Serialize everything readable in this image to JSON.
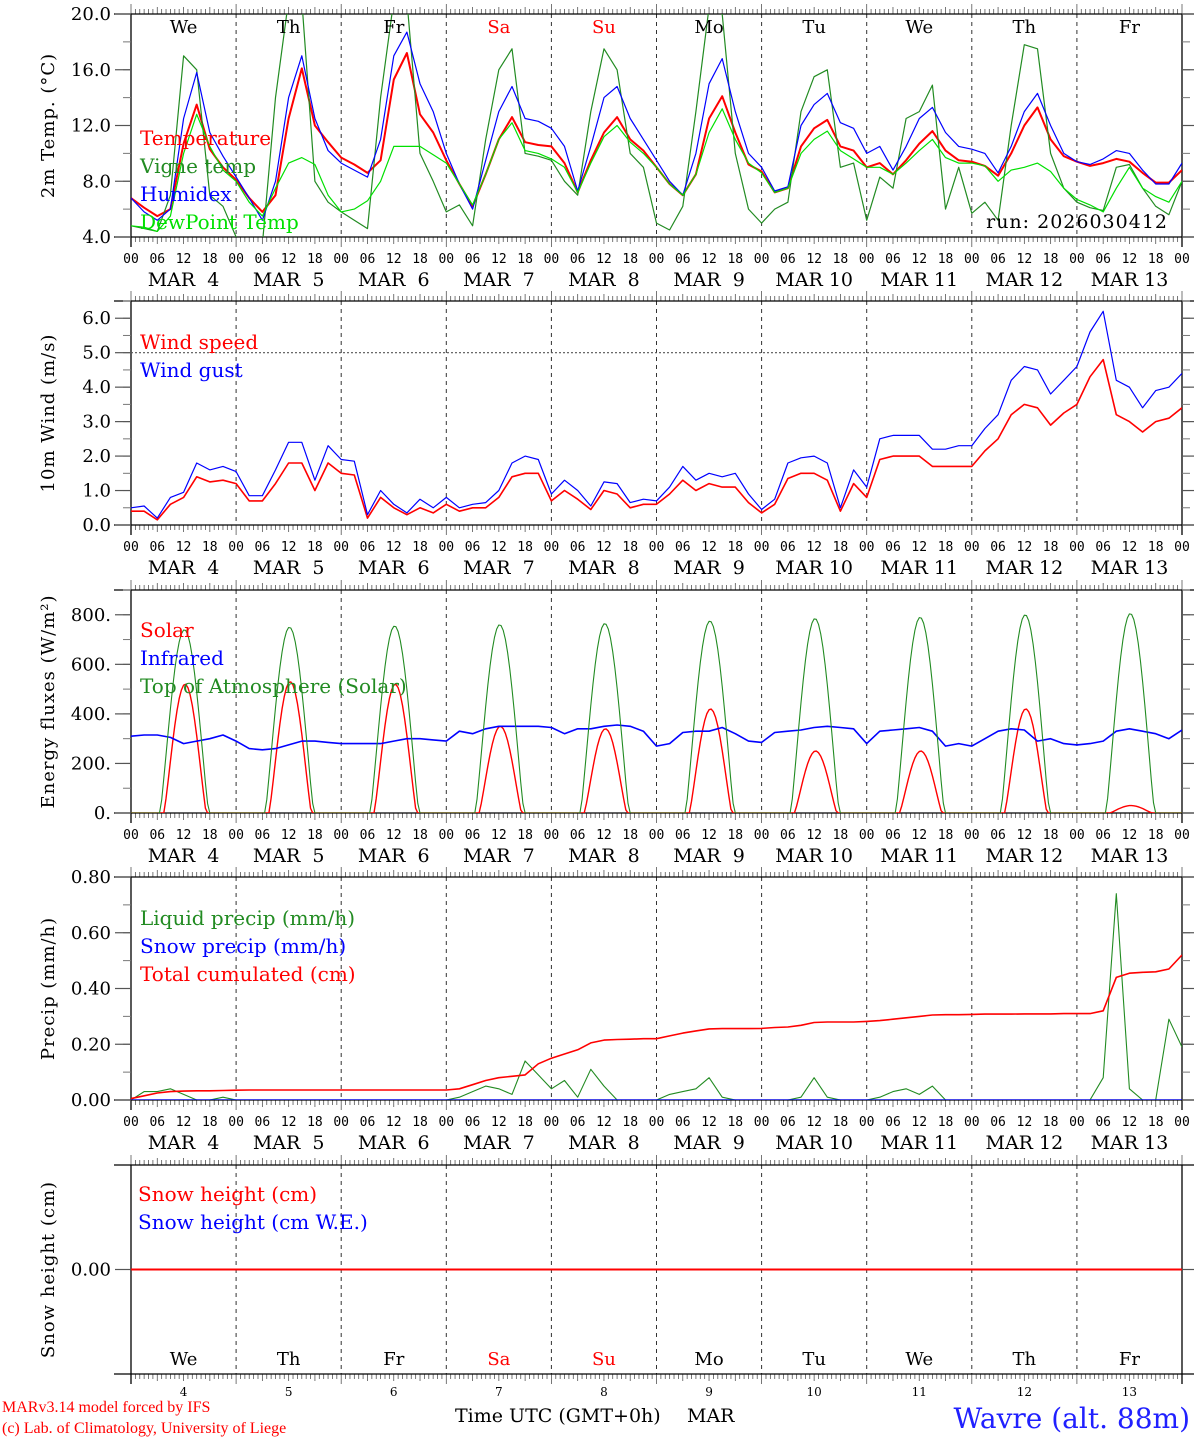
{
  "days": [
    "We",
    "Th",
    "Fr",
    "Sa",
    "Su",
    "Mo",
    "Tu",
    "We",
    "Th",
    "Fr"
  ],
  "weekend": [
    false,
    false,
    false,
    true,
    true,
    false,
    false,
    false,
    false,
    false
  ],
  "dates": [
    "MAR  4",
    "MAR  5",
    "MAR  6",
    "MAR  7",
    "MAR  8",
    "MAR  9",
    "MAR 10",
    "MAR 11",
    "MAR 12",
    "MAR 13"
  ],
  "date_numbers": [
    "4",
    "5",
    "6",
    "7",
    "8",
    "9",
    "10",
    "11",
    "12",
    "13"
  ],
  "hour_labels": [
    "00",
    "06",
    "12",
    "18"
  ],
  "colors": {
    "weekend": "#ff0000",
    "weekday": "#000000"
  },
  "xlabel": "Time UTC (GMT+0h)",
  "xlabel_month": "MAR",
  "footer": {
    "credit1": "MARv3.14 model forced by IFS",
    "credit2": "(c) Lab. of Climatology, University of Liege",
    "station": "Wavre (alt. 88m)"
  },
  "chart_data": [
    {
      "type": "line",
      "ylabel": "2m Temp. (°C)",
      "ylim": [
        4,
        20
      ],
      "yticks": [
        "4.0",
        "8.0",
        "12.0",
        "16.0",
        "20.0"
      ],
      "ytick_values": [
        4,
        8,
        12,
        16,
        20
      ],
      "yminor_step": 2,
      "x_step_hours": 3,
      "annotation": "run: 2026030412",
      "series": [
        {
          "name": "Temperature",
          "color": "#ff0000",
          "width": 2,
          "values": [
            6.8,
            6.1,
            5.5,
            6.0,
            10.7,
            13.5,
            10.3,
            9.0,
            8.1,
            6.8,
            5.8,
            7.0,
            12.5,
            16.1,
            12.0,
            10.8,
            9.7,
            9.2,
            8.6,
            9.5,
            15.3,
            17.2,
            12.8,
            11.5,
            9.5,
            7.8,
            6.2,
            8.5,
            11.0,
            12.6,
            10.8,
            10.6,
            10.5,
            9.3,
            7.2,
            9.5,
            11.5,
            12.6,
            11.0,
            10.2,
            9.0,
            7.8,
            7.0,
            8.5,
            12.5,
            14.1,
            11.5,
            9.2,
            8.7,
            7.2,
            7.5,
            10.5,
            11.8,
            12.4,
            10.5,
            10.2,
            9.0,
            9.3,
            8.5,
            9.5,
            10.7,
            11.6,
            10.2,
            9.5,
            9.4,
            9.1,
            8.4,
            10.0,
            12.0,
            13.3,
            11.0,
            9.8,
            9.4,
            9.1,
            9.3,
            9.6,
            9.4,
            8.6,
            7.9,
            7.9,
            8.8
          ]
        },
        {
          "name": "Vigne temp",
          "color": "#228b22",
          "width": 1.2,
          "values": [
            4.8,
            4.6,
            4.4,
            7.0,
            17.0,
            16.0,
            7.0,
            6.2,
            4.0,
            2.5,
            3.5,
            14.0,
            21.0,
            21.0,
            8.0,
            6.5,
            5.8,
            5.2,
            4.6,
            14.0,
            21.0,
            21.0,
            10.0,
            8.0,
            5.8,
            6.3,
            4.8,
            11.0,
            16.0,
            17.5,
            10.0,
            9.8,
            9.5,
            8.0,
            7.0,
            13.0,
            17.5,
            16.0,
            10.0,
            9.0,
            5.0,
            4.5,
            6.2,
            13.0,
            20.5,
            20.0,
            10.0,
            6.0,
            5.0,
            6.0,
            6.5,
            13.0,
            15.5,
            16.0,
            9.0,
            9.3,
            5.2,
            8.3,
            7.5,
            12.5,
            13.0,
            14.9,
            6.0,
            9.0,
            5.7,
            6.5,
            5.2,
            12.0,
            17.8,
            17.5,
            10.0,
            7.5,
            6.5,
            6.1,
            5.9,
            9.0,
            9.2,
            7.5,
            6.2,
            5.6,
            8.0
          ]
        },
        {
          "name": "Humidex",
          "color": "#0000ff",
          "width": 1.2,
          "values": [
            6.8,
            5.8,
            5.2,
            6.0,
            12.5,
            15.8,
            11.5,
            9.8,
            8.3,
            6.8,
            5.2,
            8.0,
            14.0,
            17.0,
            12.5,
            10.2,
            9.3,
            8.8,
            8.3,
            11.0,
            17.0,
            18.7,
            15.0,
            13.0,
            10.0,
            7.8,
            6.0,
            9.5,
            13.0,
            14.8,
            12.5,
            12.3,
            11.8,
            10.5,
            7.3,
            10.5,
            14.0,
            14.8,
            12.5,
            11.0,
            9.5,
            8.0,
            7.0,
            10.0,
            15.0,
            16.8,
            13.0,
            10.0,
            9.0,
            7.3,
            7.6,
            12.0,
            13.5,
            14.3,
            12.2,
            11.8,
            10.0,
            10.5,
            8.8,
            10.5,
            12.5,
            13.3,
            11.5,
            10.5,
            10.3,
            10.0,
            8.6,
            10.5,
            13.0,
            14.3,
            12.0,
            10.0,
            9.4,
            9.2,
            9.6,
            10.2,
            10.0,
            8.8,
            7.8,
            7.8,
            9.3
          ]
        },
        {
          "name": "DewPoint Temp",
          "color": "#00e000",
          "width": 1.2,
          "values": [
            4.8,
            4.7,
            4.4,
            5.5,
            10.0,
            12.8,
            10.5,
            8.8,
            8.0,
            6.5,
            5.5,
            7.5,
            9.3,
            9.7,
            9.2,
            7.0,
            5.8,
            6.0,
            6.6,
            8.0,
            10.5,
            10.5,
            10.5,
            9.9,
            9.3,
            7.8,
            6.3,
            8.5,
            11.0,
            12.2,
            10.2,
            10.0,
            9.6,
            9.0,
            7.2,
            9.3,
            11.2,
            12.0,
            10.8,
            10.0,
            9.0,
            7.8,
            7.0,
            8.5,
            11.5,
            13.2,
            11.0,
            9.3,
            8.6,
            7.2,
            7.5,
            10.0,
            11.0,
            11.6,
            10.2,
            9.6,
            9.0,
            9.0,
            8.5,
            9.3,
            10.2,
            11.0,
            9.7,
            9.3,
            9.3,
            9.1,
            8.0,
            8.8,
            9.0,
            9.3,
            8.7,
            7.5,
            6.7,
            6.3,
            5.8,
            7.5,
            9.0,
            7.5,
            6.9,
            6.5,
            8.0
          ]
        }
      ]
    },
    {
      "type": "line",
      "ylabel": "10m Wind (m/s)",
      "ylim": [
        0,
        6.5
      ],
      "yticks": [
        "0.0",
        "1.0",
        "2.0",
        "3.0",
        "4.0",
        "5.0",
        "6.0"
      ],
      "ytick_values": [
        0,
        1,
        2,
        3,
        4,
        5,
        6
      ],
      "yminor_step": 0.5,
      "x_step_hours": 3,
      "reference_line": 5.0,
      "series": [
        {
          "name": "Wind speed",
          "color": "#ff0000",
          "width": 1.6,
          "values": [
            0.4,
            0.4,
            0.15,
            0.6,
            0.8,
            1.4,
            1.25,
            1.3,
            1.2,
            0.7,
            0.7,
            1.2,
            1.8,
            1.8,
            1.0,
            1.8,
            1.5,
            1.45,
            0.2,
            0.8,
            0.5,
            0.3,
            0.5,
            0.35,
            0.6,
            0.4,
            0.5,
            0.5,
            0.8,
            1.4,
            1.5,
            1.5,
            0.7,
            1.0,
            0.75,
            0.45,
            1.0,
            0.9,
            0.5,
            0.6,
            0.6,
            0.9,
            1.3,
            1.0,
            1.2,
            1.1,
            1.1,
            0.65,
            0.35,
            0.6,
            1.35,
            1.5,
            1.5,
            1.3,
            0.4,
            1.2,
            0.8,
            1.9,
            2.0,
            2.0,
            2.0,
            1.7,
            1.7,
            1.7,
            1.7,
            2.15,
            2.5,
            3.2,
            3.5,
            3.4,
            2.9,
            3.25,
            3.5,
            4.3,
            4.8,
            3.2,
            3.0,
            2.7,
            3.0,
            3.1,
            3.4
          ]
        },
        {
          "name": "Wind gust",
          "color": "#0000ff",
          "width": 1.2,
          "values": [
            0.5,
            0.55,
            0.2,
            0.8,
            0.95,
            1.8,
            1.6,
            1.7,
            1.55,
            0.85,
            0.85,
            1.6,
            2.4,
            2.4,
            1.3,
            2.3,
            1.9,
            1.85,
            0.3,
            1.0,
            0.6,
            0.35,
            0.75,
            0.5,
            0.8,
            0.5,
            0.6,
            0.65,
            1.0,
            1.8,
            2.0,
            1.9,
            0.9,
            1.3,
            1.0,
            0.55,
            1.25,
            1.2,
            0.65,
            0.75,
            0.7,
            1.1,
            1.7,
            1.3,
            1.5,
            1.4,
            1.5,
            0.9,
            0.45,
            0.75,
            1.8,
            1.95,
            2.0,
            1.8,
            0.5,
            1.6,
            1.1,
            2.5,
            2.6,
            2.6,
            2.6,
            2.2,
            2.2,
            2.3,
            2.3,
            2.8,
            3.2,
            4.2,
            4.6,
            4.5,
            3.8,
            4.2,
            4.6,
            5.6,
            6.2,
            4.2,
            4.0,
            3.4,
            3.9,
            4.0,
            4.4
          ]
        }
      ]
    },
    {
      "type": "line",
      "ylabel": "Energy fluxes (W/m²)",
      "ylim": [
        0,
        900
      ],
      "yticks": [
        "0.",
        "200.",
        "400.",
        "600.",
        "800."
      ],
      "ytick_values": [
        0,
        200,
        400,
        600,
        800
      ],
      "yminor_step": 100,
      "series": [
        {
          "name": "Solar",
          "color": "#ff0000",
          "width": 1.4,
          "daily_peaks": [
            520,
            530,
            520,
            350,
            340,
            420,
            250,
            250,
            420,
            30
          ],
          "daylight_hours": [
            7.5,
            17.2
          ]
        },
        {
          "name": "Infrared",
          "color": "#0000ff",
          "width": 1.6,
          "x_step_hours": 3,
          "values": [
            310,
            315,
            315,
            305,
            280,
            290,
            300,
            315,
            290,
            260,
            255,
            260,
            275,
            290,
            290,
            285,
            280,
            280,
            280,
            280,
            290,
            300,
            300,
            295,
            290,
            330,
            320,
            340,
            350,
            350,
            350,
            350,
            345,
            320,
            340,
            340,
            350,
            355,
            350,
            330,
            270,
            280,
            325,
            330,
            330,
            345,
            320,
            290,
            285,
            325,
            330,
            335,
            345,
            350,
            345,
            340,
            280,
            330,
            335,
            340,
            345,
            330,
            270,
            280,
            270,
            300,
            330,
            340,
            335,
            290,
            300,
            280,
            275,
            280,
            290,
            330,
            340,
            330,
            320,
            300,
            335
          ]
        },
        {
          "name": "Top of Atmosphere (Solar)",
          "color": "#228b22",
          "width": 1.1,
          "daily_peaks": [
            740,
            750,
            755,
            760,
            765,
            775,
            785,
            790,
            800,
            805
          ],
          "daylight_hours": [
            6.6,
            17.8
          ]
        }
      ]
    },
    {
      "type": "line",
      "ylabel": "Precip (mm/h)",
      "ylim": [
        0,
        0.8
      ],
      "yticks": [
        "0.00",
        "0.20",
        "0.40",
        "0.60",
        "0.80"
      ],
      "ytick_values": [
        0,
        0.2,
        0.4,
        0.6,
        0.8
      ],
      "yminor_step": 0.1,
      "x_step_hours": 3,
      "series": [
        {
          "name": "Liquid precip (mm/h)",
          "color": "#228b22",
          "width": 1.1,
          "values": [
            0.0,
            0.03,
            0.03,
            0.04,
            0.02,
            0.0,
            0.0,
            0.01,
            0.0,
            0,
            0,
            0,
            0,
            0,
            0,
            0,
            0,
            0,
            0,
            0,
            0,
            0,
            0,
            0,
            0,
            0.01,
            0.03,
            0.05,
            0.04,
            0.02,
            0.14,
            0.09,
            0.04,
            0.07,
            0.01,
            0.11,
            0.05,
            0,
            0,
            0,
            0,
            0.02,
            0.03,
            0.04,
            0.08,
            0.01,
            0,
            0,
            0,
            0,
            0,
            0.01,
            0.08,
            0.01,
            0,
            0,
            0,
            0.01,
            0.03,
            0.04,
            0.02,
            0.05,
            0,
            0,
            0,
            0,
            0,
            0,
            0,
            0,
            0,
            0,
            0,
            0,
            0.08,
            0.74,
            0.04,
            0,
            0,
            0.29,
            0.19
          ]
        },
        {
          "name": "Snow precip (mm/h)",
          "color": "#0000ff",
          "width": 1.2,
          "constant": 0
        },
        {
          "name": "Total cumulated (cm)",
          "color": "#ff0000",
          "width": 1.6,
          "values": [
            0.005,
            0.015,
            0.025,
            0.03,
            0.032,
            0.033,
            0.033,
            0.034,
            0.035,
            0.036,
            0.036,
            0.036,
            0.036,
            0.036,
            0.036,
            0.036,
            0.036,
            0.036,
            0.036,
            0.036,
            0.036,
            0.036,
            0.036,
            0.036,
            0.036,
            0.04,
            0.055,
            0.07,
            0.08,
            0.085,
            0.09,
            0.13,
            0.15,
            0.165,
            0.18,
            0.205,
            0.215,
            0.217,
            0.218,
            0.22,
            0.22,
            0.23,
            0.24,
            0.248,
            0.255,
            0.256,
            0.256,
            0.256,
            0.257,
            0.26,
            0.262,
            0.268,
            0.278,
            0.28,
            0.28,
            0.28,
            0.282,
            0.285,
            0.29,
            0.295,
            0.3,
            0.305,
            0.306,
            0.306,
            0.307,
            0.308,
            0.308,
            0.308,
            0.309,
            0.309,
            0.309,
            0.31,
            0.31,
            0.31,
            0.32,
            0.44,
            0.455,
            0.458,
            0.46,
            0.47,
            0.52
          ]
        }
      ]
    },
    {
      "type": "line",
      "ylabel": "Snow height (cm)",
      "ylim": [
        -1,
        1
      ],
      "yticks": [
        "0.00"
      ],
      "ytick_values": [
        0
      ],
      "series": [
        {
          "name": "Snow height (cm)",
          "color": "#ff0000",
          "width": 2,
          "constant": 0
        },
        {
          "name": "Snow height (cm W.E.)",
          "color": "#0000ff",
          "width": 1.2,
          "constant": 0
        }
      ]
    }
  ]
}
